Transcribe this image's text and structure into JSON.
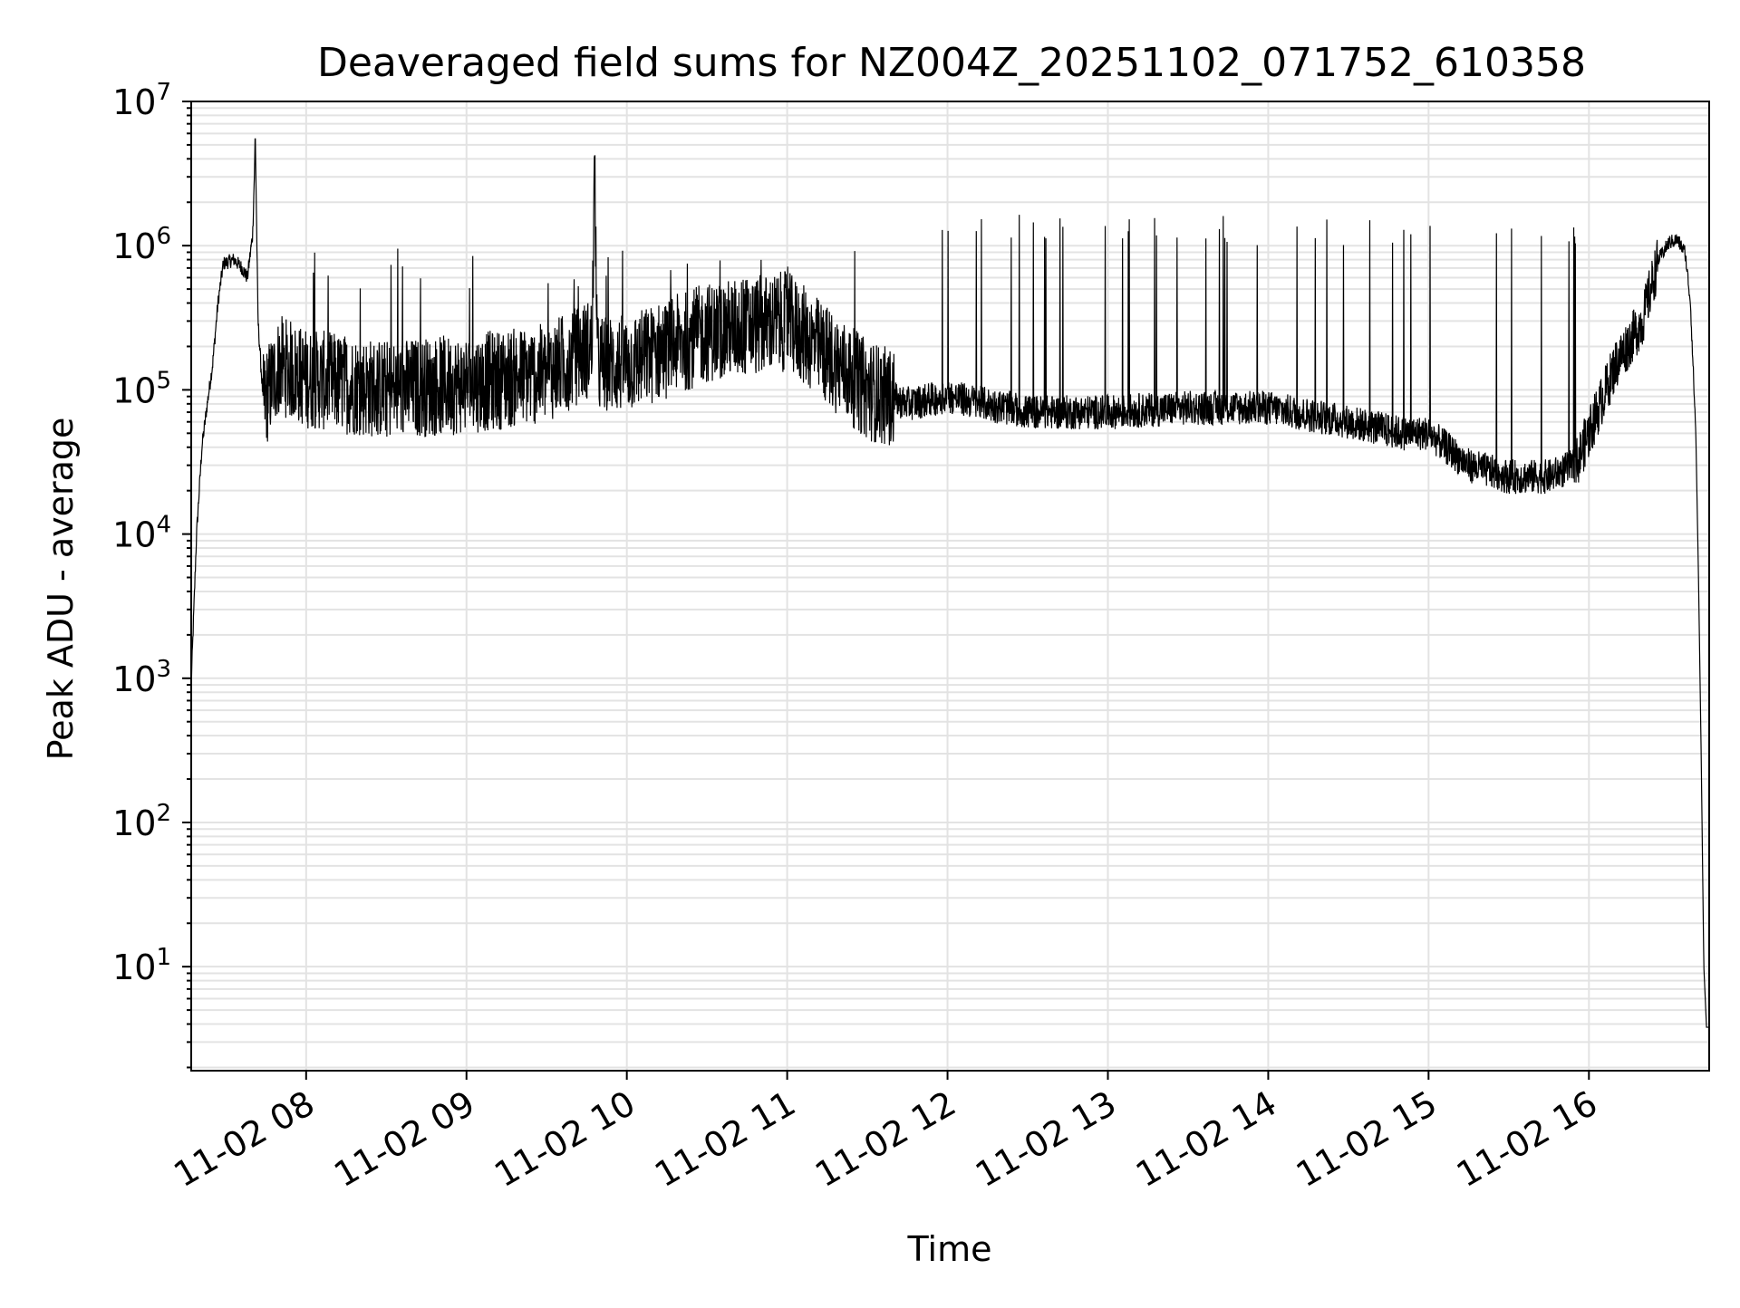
{
  "chart_data": {
    "type": "line",
    "title": "Deaveraged field sums for NZ004Z_20251102_071752_610358",
    "xlabel": "Time",
    "ylabel": "Peak ADU - average",
    "x_tick_labels": [
      "11-02 08",
      "11-02 09",
      "11-02 10",
      "11-02 11",
      "11-02 12",
      "11-02 13",
      "11-02 14",
      "11-02 15",
      "11-02 16"
    ],
    "y_tick_labels": [
      {
        "base": "10",
        "exp": "1"
      },
      {
        "base": "10",
        "exp": "2"
      },
      {
        "base": "10",
        "exp": "3"
      },
      {
        "base": "10",
        "exp": "4"
      },
      {
        "base": "10",
        "exp": "5"
      },
      {
        "base": "10",
        "exp": "6"
      },
      {
        "base": "10",
        "exp": "7"
      }
    ],
    "y_scale": "log",
    "xlim": [
      "2025-11-02 07:17",
      "2025-11-02 16:45"
    ],
    "ylim": [
      1.9,
      10000000
    ],
    "grid": true,
    "line_color": "#000000",
    "grid_color": "#e3e3e3",
    "series": [
      {
        "points": [
          [
            "07:17",
            900
          ],
          [
            "07:19",
            10000
          ],
          [
            "07:21",
            40000
          ],
          [
            "07:23",
            80000
          ],
          [
            "07:25",
            150000
          ],
          [
            "07:27",
            400000
          ],
          [
            "07:29",
            750000
          ],
          [
            "07:33",
            800000
          ],
          [
            "07:36",
            700000
          ],
          [
            "07:38",
            600000
          ],
          [
            "07:40",
            1200000
          ],
          [
            "07:41",
            5500000
          ],
          [
            "07:42",
            300000
          ],
          [
            "07:44",
            80000
          ],
          [
            "07:50",
            150000
          ],
          [
            "08:00",
            120000
          ],
          [
            "08:30",
            100000
          ],
          [
            "09:00",
            110000
          ],
          [
            "09:30",
            130000
          ],
          [
            "09:47",
            200000
          ],
          [
            "09:48",
            4200000
          ],
          [
            "09:49",
            150000
          ],
          [
            "10:00",
            150000
          ],
          [
            "10:30",
            250000
          ],
          [
            "11:00",
            300000
          ],
          [
            "11:30",
            100000
          ],
          [
            "11:45",
            80000
          ],
          [
            "12:00",
            90000
          ],
          [
            "12:30",
            70000
          ],
          [
            "13:00",
            70000
          ],
          [
            "13:30",
            75000
          ],
          [
            "14:00",
            75000
          ],
          [
            "14:30",
            60000
          ],
          [
            "14:50",
            50000
          ],
          [
            "15:00",
            50000
          ],
          [
            "15:15",
            30000
          ],
          [
            "15:30",
            25000
          ],
          [
            "15:45",
            25000
          ],
          [
            "15:55",
            30000
          ],
          [
            "16:00",
            50000
          ],
          [
            "16:10",
            150000
          ],
          [
            "16:20",
            300000
          ],
          [
            "16:26",
            800000
          ],
          [
            "16:30",
            1050000
          ],
          [
            "16:33",
            1100000
          ],
          [
            "16:36",
            900000
          ],
          [
            "16:38",
            400000
          ],
          [
            "16:40",
            50000
          ],
          [
            "16:41",
            5000
          ],
          [
            "16:42",
            300
          ],
          [
            "16:43",
            10
          ],
          [
            "16:44",
            3.8
          ],
          [
            "16:45",
            3.8
          ]
        ],
        "spikes_note": ""
      }
    ]
  }
}
